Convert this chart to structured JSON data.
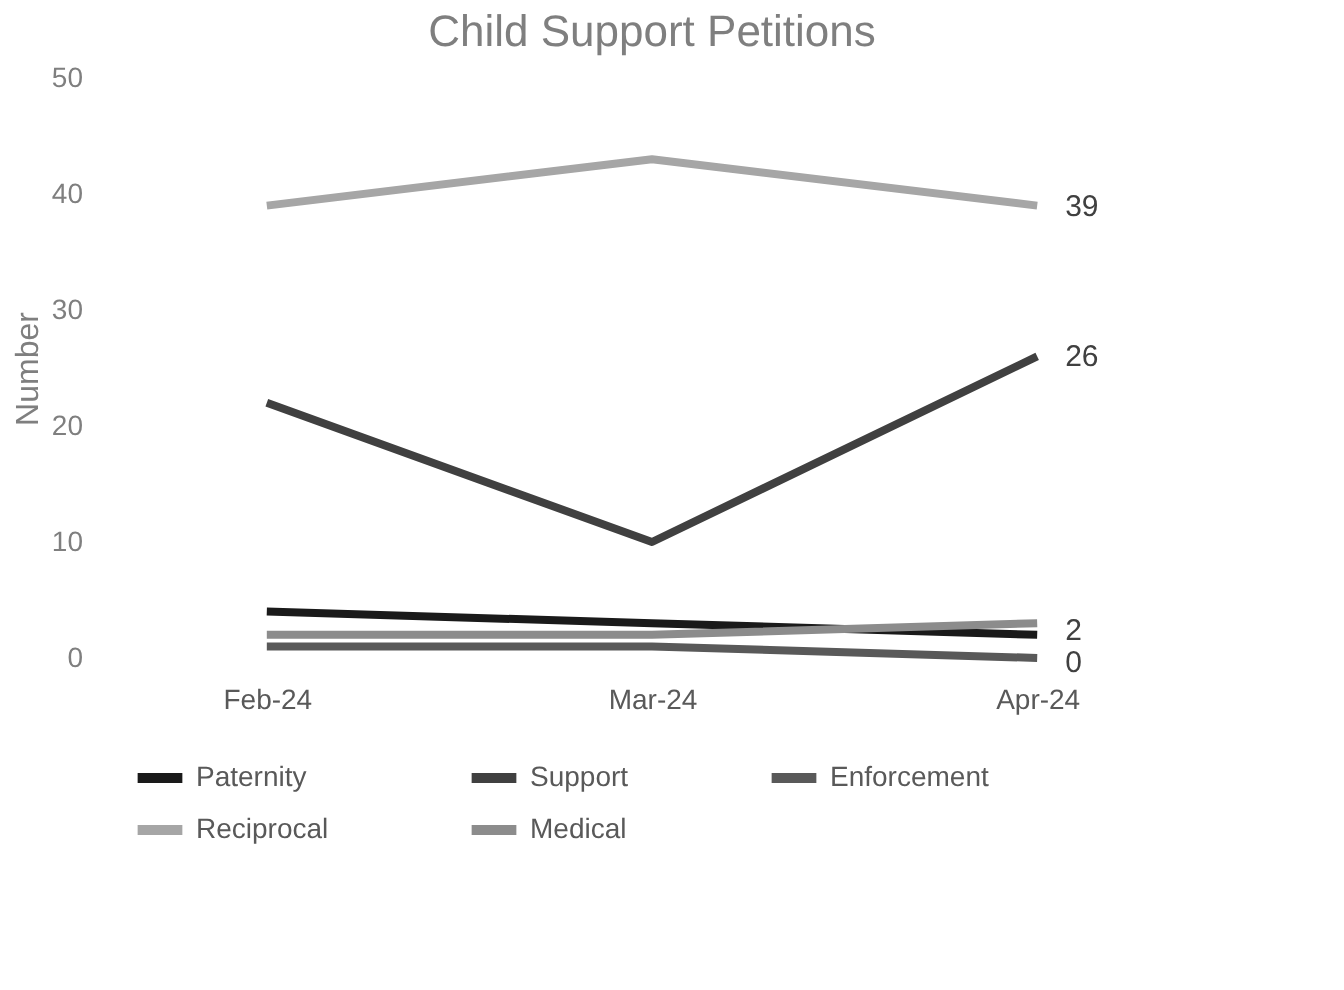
{
  "chart_data": {
    "type": "line",
    "title": "Child Support Petitions",
    "ylabel": "Number",
    "categories": [
      "Feb-24",
      "Mar-24",
      "Apr-24"
    ],
    "series": [
      {
        "name": "Paternity",
        "color": "#1a1a1a",
        "values": [
          4,
          3,
          2
        ],
        "value_labels": [
          null,
          null,
          "2"
        ]
      },
      {
        "name": "Support",
        "color": "#404040",
        "values": [
          22,
          10,
          26
        ],
        "value_labels": [
          null,
          null,
          "26"
        ]
      },
      {
        "name": "Enforcement",
        "color": "#595959",
        "values": [
          1,
          1,
          0
        ],
        "value_labels": [
          null,
          null,
          "0"
        ]
      },
      {
        "name": "Reciprocal",
        "color": "#a6a6a6",
        "values": [
          39,
          43,
          39
        ],
        "value_labels": [
          null,
          null,
          "39"
        ]
      },
      {
        "name": "Medical",
        "color": "#8c8c8c",
        "values": [
          2,
          2,
          3
        ]
      }
    ],
    "ylim": [
      0,
      50
    ],
    "yticks": [
      0,
      10,
      20,
      30,
      40,
      50
    ],
    "grid": false,
    "legend": "bottom",
    "marker": "none",
    "line_style": "solid"
  }
}
